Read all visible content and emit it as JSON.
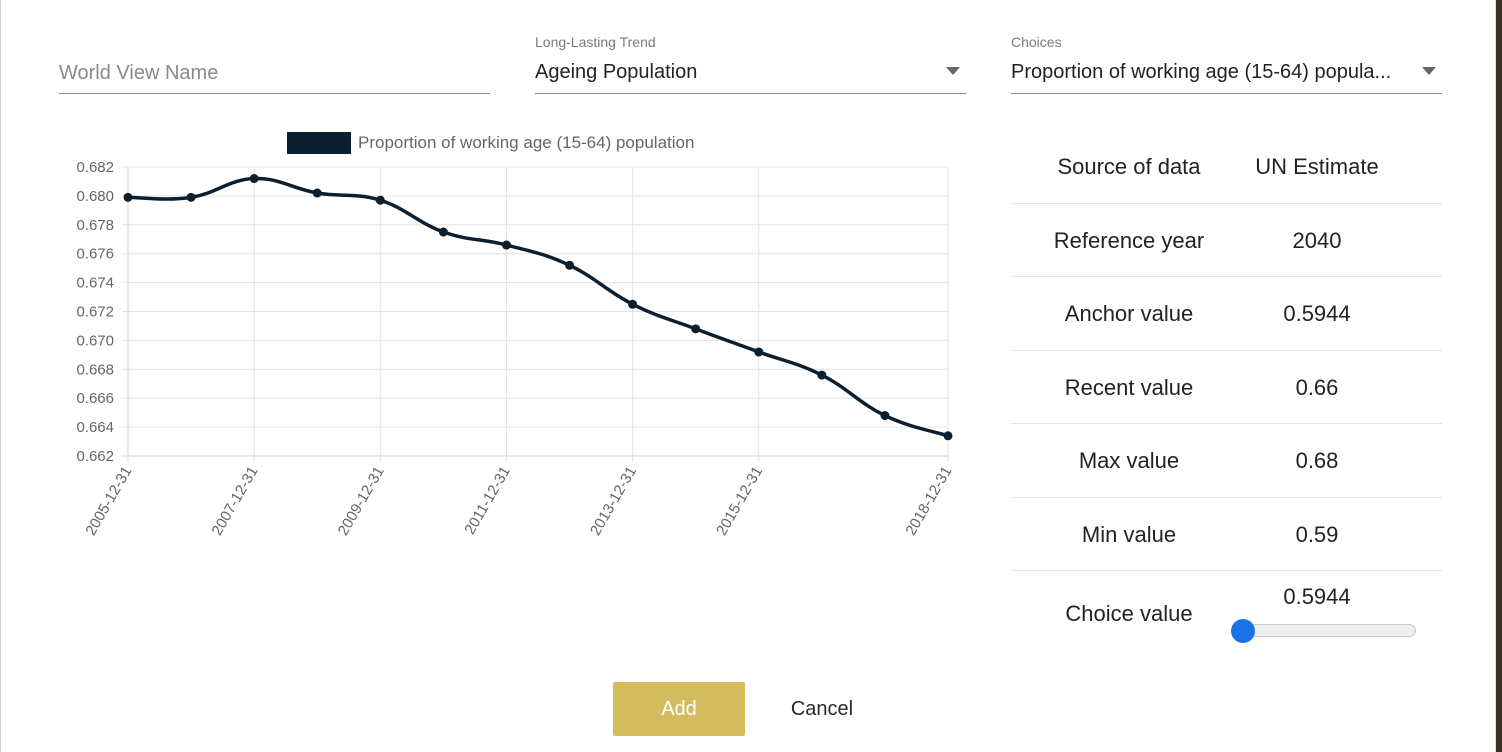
{
  "form": {
    "world_view_name": {
      "placeholder": "World View Name",
      "value": ""
    },
    "trend": {
      "label": "Long-Lasting Trend",
      "value": "Ageing Population"
    },
    "choices": {
      "label": "Choices",
      "value": "Proportion of working age (15-64) popula..."
    }
  },
  "chart_data": {
    "type": "line",
    "legend": "Proportion of working age (15-64) population",
    "legend_position": "top",
    "color": "#0b1f2e",
    "grid": true,
    "x": [
      "2005-12-31",
      "2006-12-31",
      "2007-12-31",
      "2008-12-31",
      "2009-12-31",
      "2010-12-31",
      "2011-12-31",
      "2012-12-31",
      "2013-12-31",
      "2014-12-31",
      "2015-12-31",
      "2016-12-31",
      "2017-12-31",
      "2018-12-31"
    ],
    "x_tick_labels": [
      "2005-12-31",
      "2007-12-31",
      "2009-12-31",
      "2011-12-31",
      "2013-12-31",
      "2015-12-31",
      "2018-12-31"
    ],
    "y": [
      0.6799,
      0.6799,
      0.6812,
      0.6802,
      0.6797,
      0.6775,
      0.6766,
      0.6752,
      0.6725,
      0.6708,
      0.6692,
      0.6676,
      0.6648,
      0.6634
    ],
    "y_ticks": [
      "0.682",
      "0.680",
      "0.678",
      "0.676",
      "0.674",
      "0.672",
      "0.670",
      "0.668",
      "0.666",
      "0.664",
      "0.662"
    ],
    "ylim": [
      0.662,
      0.682
    ]
  },
  "info": {
    "rows": [
      {
        "key": "Source of data",
        "value": "UN Estimate"
      },
      {
        "key": "Reference year",
        "value": "2040"
      },
      {
        "key": "Anchor value",
        "value": "0.5944"
      },
      {
        "key": "Recent value",
        "value": "0.66"
      },
      {
        "key": "Max value",
        "value": "0.68"
      },
      {
        "key": "Min value",
        "value": "0.59"
      }
    ],
    "choice": {
      "key": "Choice value",
      "value": "0.5944",
      "min": 0.59,
      "max": 0.68
    }
  },
  "actions": {
    "add_label": "Add",
    "cancel_label": "Cancel"
  },
  "colors": {
    "accent": "#d3bb5e",
    "slider": "#1a73e8",
    "line": "#0b1f2e"
  }
}
